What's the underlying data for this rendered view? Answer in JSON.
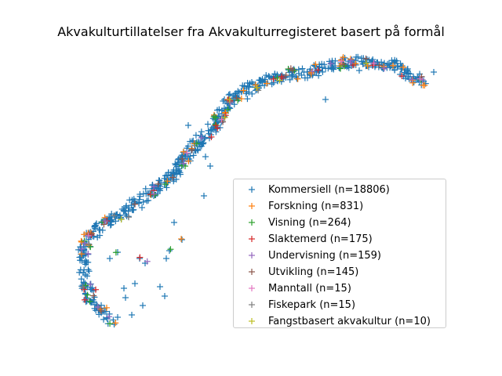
{
  "chart_data": {
    "type": "scatter",
    "title": "Akvakulturtillatelser fra Akvakulturregisteret basert på formål",
    "xlabel": "",
    "ylabel": "",
    "axes_visible": false,
    "grid": false,
    "legend_placement": "lower-right",
    "marker": "+",
    "series": [
      {
        "name": "Kommersiell (n=18806)",
        "color": "#1f77b4",
        "count": 18806
      },
      {
        "name": "Forskning (n=831)",
        "color": "#ff7f0e",
        "count": 831
      },
      {
        "name": "Visning (n=264)",
        "color": "#2ca02c",
        "count": 264
      },
      {
        "name": "Slaktemerd (n=175)",
        "color": "#d62728",
        "count": 175
      },
      {
        "name": "Undervisning (n=159)",
        "color": "#9467bd",
        "count": 159
      },
      {
        "name": "Utvikling (n=145)",
        "color": "#8c564b",
        "count": 145
      },
      {
        "name": "Manntall (n=15)",
        "color": "#e377c2",
        "count": 15
      },
      {
        "name": "Fiskepark (n=15)",
        "color": "#7f7f7f",
        "count": 15
      },
      {
        "name": "Fangstbasert akvakultur (n=10)",
        "color": "#bcbd22",
        "count": 10
      }
    ]
  }
}
